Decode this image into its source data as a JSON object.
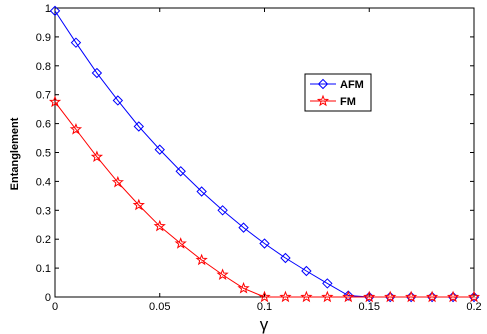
{
  "chart_data": {
    "type": "line",
    "xlabel": "γ",
    "ylabel": "Entanglement",
    "xlim": [
      0,
      0.2
    ],
    "ylim": [
      0,
      1
    ],
    "xticks": [
      "0",
      "0.05",
      "0.1",
      "0.15",
      "0.2"
    ],
    "yticks": [
      "0",
      "0.1",
      "0.2",
      "0.3",
      "0.4",
      "0.5",
      "0.6",
      "0.7",
      "0.8",
      "0.9",
      "1"
    ],
    "grid": false,
    "legend_position": "upper-right",
    "x": [
      0,
      0.01,
      0.02,
      0.03,
      0.04,
      0.05,
      0.06,
      0.07,
      0.08,
      0.09,
      0.1,
      0.11,
      0.12,
      0.13,
      0.14,
      0.15,
      0.16,
      0.17,
      0.18,
      0.19,
      0.2
    ],
    "series": [
      {
        "name": "AFM",
        "color": "#0000ff",
        "marker": "diamond",
        "values": [
          0.99,
          0.88,
          0.775,
          0.68,
          0.59,
          0.51,
          0.435,
          0.365,
          0.3,
          0.24,
          0.185,
          0.135,
          0.09,
          0.047,
          0.005,
          0,
          0,
          0,
          0,
          0,
          0
        ]
      },
      {
        "name": "FM",
        "color": "#ff0000",
        "marker": "star",
        "values": [
          0.675,
          0.58,
          0.485,
          0.397,
          0.318,
          0.245,
          0.185,
          0.128,
          0.077,
          0.03,
          0,
          0,
          0,
          0,
          0,
          0,
          0,
          0,
          0,
          0,
          0
        ]
      }
    ]
  }
}
